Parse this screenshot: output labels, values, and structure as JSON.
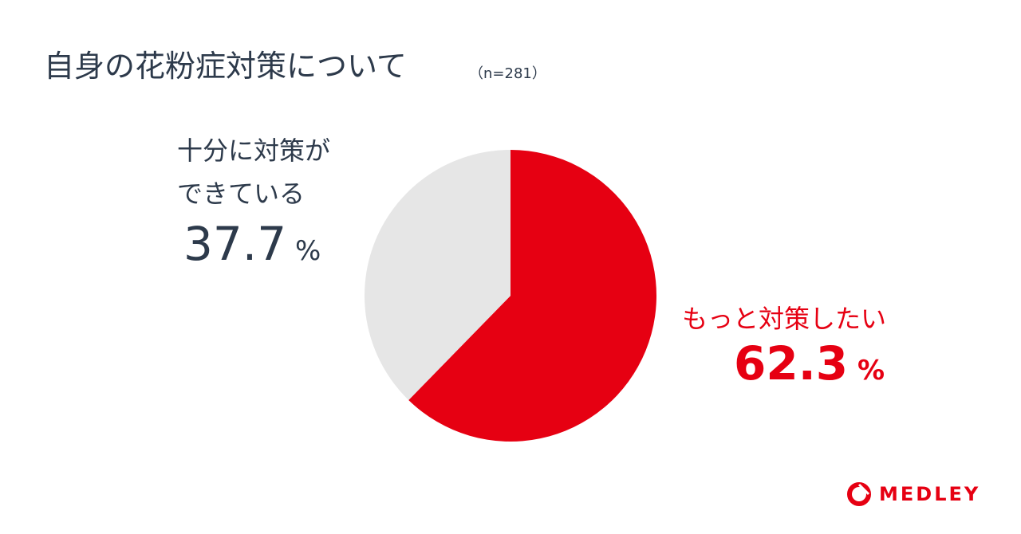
{
  "chart_data": {
    "type": "pie",
    "title": "自身の花粉症対策について",
    "subtitle": "（n=281）",
    "categories": [
      "十分に対策ができている",
      "もっと対策したい"
    ],
    "values": [
      37.7,
      62.3
    ],
    "value_labels": [
      "37.7 %",
      "62.3 %"
    ],
    "colors": [
      "#e6e6e6",
      "#e60012"
    ],
    "text_colors": [
      "#2d3a4b",
      "#e60012"
    ]
  },
  "logo": "MEDLEY"
}
